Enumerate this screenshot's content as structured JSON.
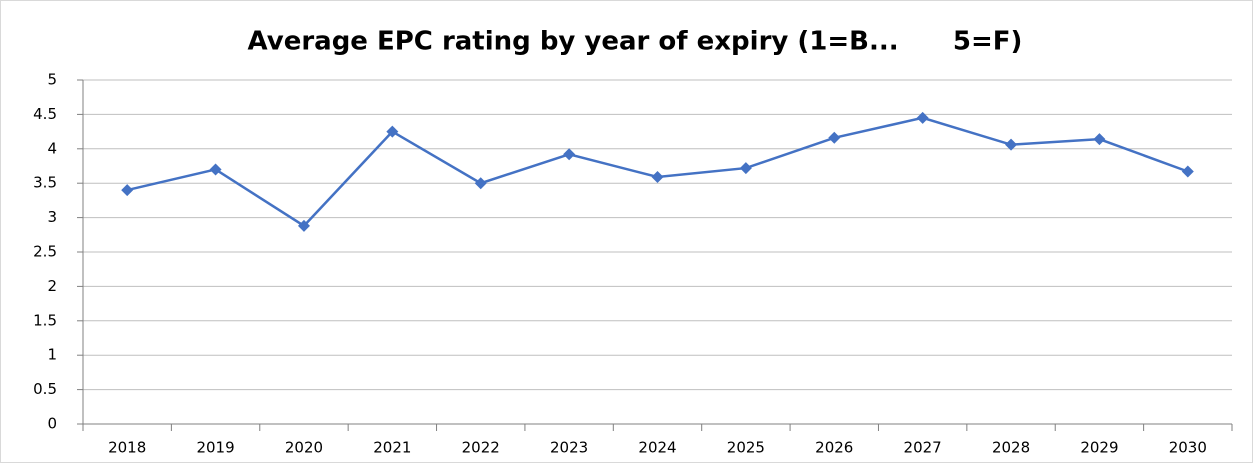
{
  "chart_data": {
    "type": "line",
    "title": "Average EPC rating by year of expiry (1=B...      5=F)",
    "categories": [
      "2018",
      "2019",
      "2020",
      "2021",
      "2022",
      "2023",
      "2024",
      "2025",
      "2026",
      "2027",
      "2028",
      "2029",
      "2030"
    ],
    "series": [
      {
        "name": "Average EPC rating",
        "color": "#4472c4",
        "values": [
          3.4,
          3.7,
          2.88,
          4.25,
          3.5,
          3.92,
          3.59,
          3.72,
          4.16,
          4.45,
          4.06,
          4.14,
          3.67
        ]
      }
    ],
    "ylim": [
      0,
      5
    ],
    "yticks": [
      0,
      0.5,
      1,
      1.5,
      2,
      2.5,
      3,
      3.5,
      4,
      4.5,
      5
    ],
    "grid": true,
    "legend": false
  }
}
